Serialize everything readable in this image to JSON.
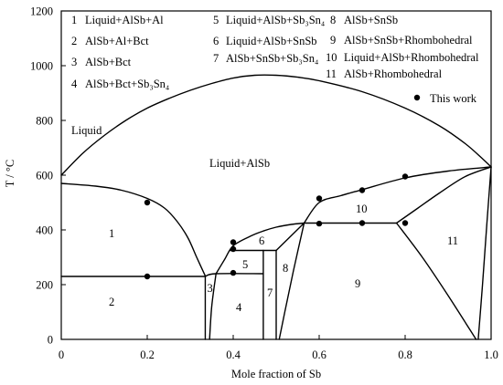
{
  "chart_data": {
    "type": "line",
    "title": "",
    "xlabel": "Mole fraction of Sb",
    "ylabel": "T / °C",
    "xlim": [
      0,
      1.0
    ],
    "ylim": [
      0,
      1200
    ],
    "x_ticks": [
      0,
      0.2,
      0.4,
      0.6,
      0.8,
      1.0
    ],
    "x_tick_labels": [
      "0",
      "0.2",
      "0.4",
      "0.6",
      "0.8",
      "1.0"
    ],
    "y_ticks": [
      0,
      200,
      400,
      600,
      800,
      1000,
      1200
    ],
    "y_tick_labels": [
      "0",
      "200",
      "400",
      "600",
      "800",
      "1000",
      "1200"
    ],
    "grid": false,
    "legend": {
      "position": "top-right"
    },
    "colors": {
      "line": "#000000",
      "marker": "#000000"
    },
    "phase_labels": {
      "liquid": "Liquid",
      "liquid_alsb": "Liquid+AlSb"
    },
    "region_legend": [
      {
        "number": "1",
        "label": "Liquid+AlSb+Al"
      },
      {
        "number": "2",
        "label": "AlSb+Al+Bct"
      },
      {
        "number": "3",
        "label": "AlSb+Bct"
      },
      {
        "number": "4",
        "label": "AlSb+Bct+Sb₃Sn₄"
      },
      {
        "number": "5",
        "label": "Liquid+AlSb+Sb₃Sn₄"
      },
      {
        "number": "6",
        "label": "Liquid+AlSb+SnSb"
      },
      {
        "number": "7",
        "label": "AlSb+SnSb+Sb₃Sn₄"
      },
      {
        "number": "8",
        "label": "AlSb+SnSb"
      },
      {
        "number": "9",
        "label": "AlSb+SnSb+Rhombohedral"
      },
      {
        "number": "10",
        "label": "Liquid+AlSb+Rhombohedral"
      },
      {
        "number": "11",
        "label": "AlSb+Rhombohedral"
      }
    ],
    "series": [
      {
        "name": "This work",
        "type": "scatter",
        "points": [
          [
            0.2,
            500
          ],
          [
            0.2,
            230
          ],
          [
            0.4,
            355
          ],
          [
            0.4,
            330
          ],
          [
            0.4,
            243
          ],
          [
            0.6,
            515
          ],
          [
            0.6,
            423
          ],
          [
            0.7,
            545
          ],
          [
            0.7,
            425
          ],
          [
            0.8,
            595
          ],
          [
            0.8,
            425
          ]
        ]
      },
      {
        "type": "line",
        "points": [
          [
            0.0,
            600
          ],
          [
            0.05,
            680
          ],
          [
            0.1,
            745
          ],
          [
            0.15,
            800
          ],
          [
            0.2,
            845
          ],
          [
            0.25,
            880
          ],
          [
            0.3,
            910
          ],
          [
            0.35,
            935
          ],
          [
            0.4,
            955
          ],
          [
            0.45,
            965
          ],
          [
            0.5,
            965
          ],
          [
            0.55,
            958
          ],
          [
            0.6,
            945
          ],
          [
            0.7,
            905
          ],
          [
            0.8,
            845
          ],
          [
            0.88,
            780
          ],
          [
            0.94,
            715
          ],
          [
            0.98,
            660
          ],
          [
            1.0,
            630
          ]
        ]
      },
      {
        "type": "line",
        "points": [
          [
            0.0,
            570
          ],
          [
            0.08,
            560
          ],
          [
            0.14,
            545
          ],
          [
            0.2,
            515
          ],
          [
            0.24,
            480
          ],
          [
            0.27,
            430
          ],
          [
            0.295,
            370
          ],
          [
            0.315,
            300
          ],
          [
            0.335,
            232
          ]
        ]
      },
      {
        "type": "line",
        "points": [
          [
            0.0,
            230
          ],
          [
            0.335,
            230
          ]
        ]
      },
      {
        "type": "line",
        "points": [
          [
            0.335,
            230
          ],
          [
            0.36,
            240
          ],
          [
            0.47,
            240
          ]
        ]
      },
      {
        "type": "line",
        "points": [
          [
            0.335,
            230
          ],
          [
            0.335,
            0
          ]
        ]
      },
      {
        "type": "line",
        "points": [
          [
            0.36,
            240
          ],
          [
            0.35,
            120
          ],
          [
            0.345,
            0
          ]
        ]
      },
      {
        "type": "line",
        "points": [
          [
            0.36,
            240
          ],
          [
            0.38,
            292
          ],
          [
            0.4,
            342
          ],
          [
            0.44,
            377
          ],
          [
            0.47,
            396
          ],
          [
            0.5,
            410
          ],
          [
            0.535,
            420
          ],
          [
            0.565,
            425
          ]
        ]
      },
      {
        "type": "line",
        "points": [
          [
            0.393,
            325
          ],
          [
            0.5,
            325
          ]
        ]
      },
      {
        "type": "line",
        "points": [
          [
            0.47,
            325
          ],
          [
            0.47,
            0
          ]
        ]
      },
      {
        "type": "line",
        "points": [
          [
            0.5,
            325
          ],
          [
            0.5,
            0
          ]
        ]
      },
      {
        "type": "line",
        "points": [
          [
            0.5,
            325
          ],
          [
            0.565,
            425
          ]
        ]
      },
      {
        "type": "line",
        "points": [
          [
            0.507,
            0
          ],
          [
            0.52,
            100
          ],
          [
            0.54,
            250
          ],
          [
            0.565,
            425
          ]
        ]
      },
      {
        "type": "line",
        "points": [
          [
            0.565,
            425
          ],
          [
            0.78,
            425
          ]
        ]
      },
      {
        "type": "line",
        "points": [
          [
            0.565,
            425
          ],
          [
            0.6,
            500
          ],
          [
            0.65,
            525
          ],
          [
            0.7,
            547
          ],
          [
            0.8,
            590
          ],
          [
            0.9,
            615
          ],
          [
            1.0,
            630
          ]
        ]
      },
      {
        "type": "line",
        "points": [
          [
            0.78,
            425
          ],
          [
            0.83,
            480
          ],
          [
            0.88,
            535
          ],
          [
            0.94,
            595
          ],
          [
            1.0,
            630
          ]
        ]
      },
      {
        "type": "line",
        "points": [
          [
            0.78,
            425
          ],
          [
            0.84,
            300
          ],
          [
            0.9,
            160
          ],
          [
            0.965,
            0
          ]
        ]
      },
      {
        "type": "line",
        "points": [
          [
            1.0,
            630
          ],
          [
            0.99,
            420
          ],
          [
            0.98,
            200
          ],
          [
            0.97,
            0
          ]
        ]
      }
    ]
  }
}
